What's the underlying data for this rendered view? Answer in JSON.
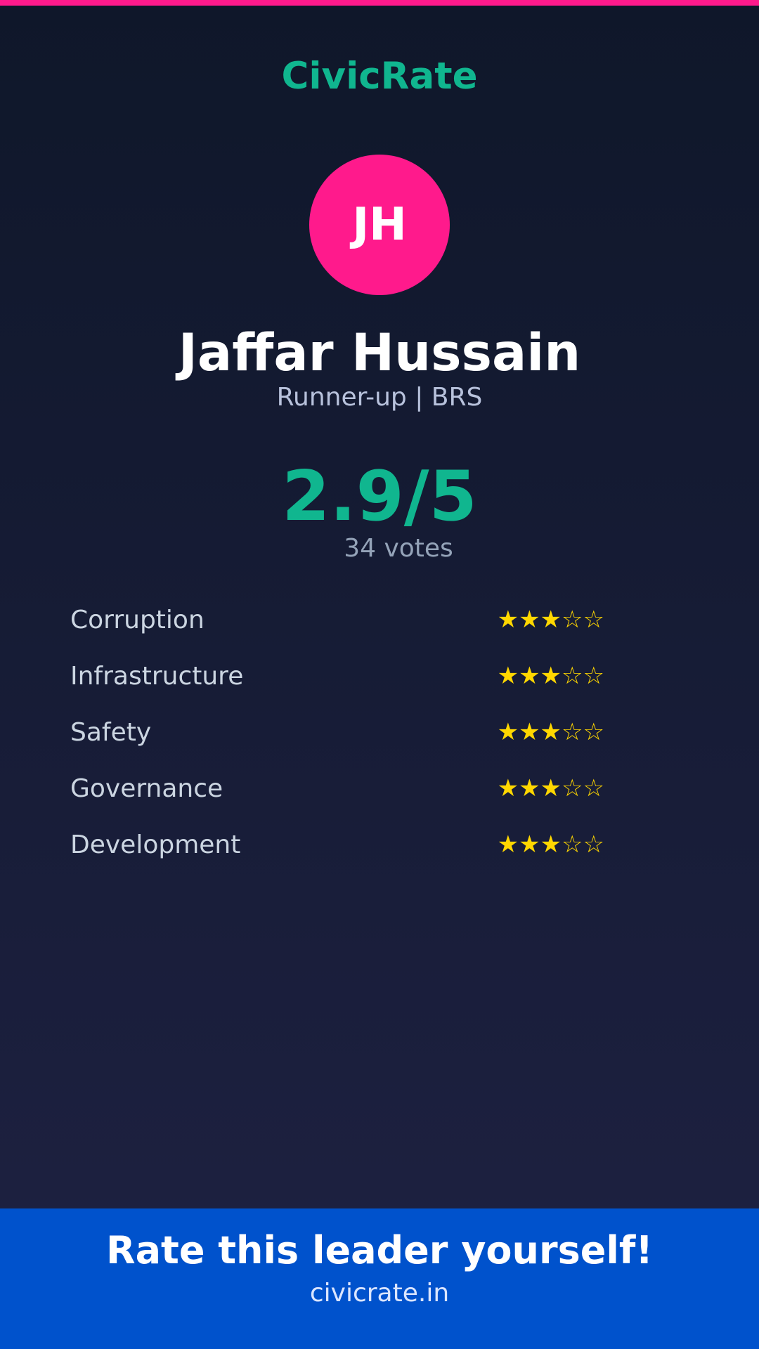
{
  "brand": "CivicRate",
  "leader": {
    "initials": "JH",
    "name": "Jaffar Hussain",
    "subtitle": "Runner-up | BRS",
    "score": "2.9/5",
    "votes": "34 votes"
  },
  "categories": [
    {
      "label": "Corruption",
      "stars": 3,
      "max": 5,
      "display": "★★★☆☆"
    },
    {
      "label": "Infrastructure",
      "stars": 3,
      "max": 5,
      "display": "★★★☆☆"
    },
    {
      "label": "Safety",
      "stars": 3,
      "max": 5,
      "display": "★★★☆☆"
    },
    {
      "label": "Governance",
      "stars": 3,
      "max": 5,
      "display": "★★★☆☆"
    },
    {
      "label": "Development",
      "stars": 3,
      "max": 5,
      "display": "★★★☆☆"
    }
  ],
  "footer": {
    "cta": "Rate this leader yourself!",
    "url": "civicrate.in"
  },
  "colors": {
    "accent": "#10b68f",
    "avatar": "#ff1a8c",
    "star": "#ffd700",
    "banner": "#0052cc"
  }
}
